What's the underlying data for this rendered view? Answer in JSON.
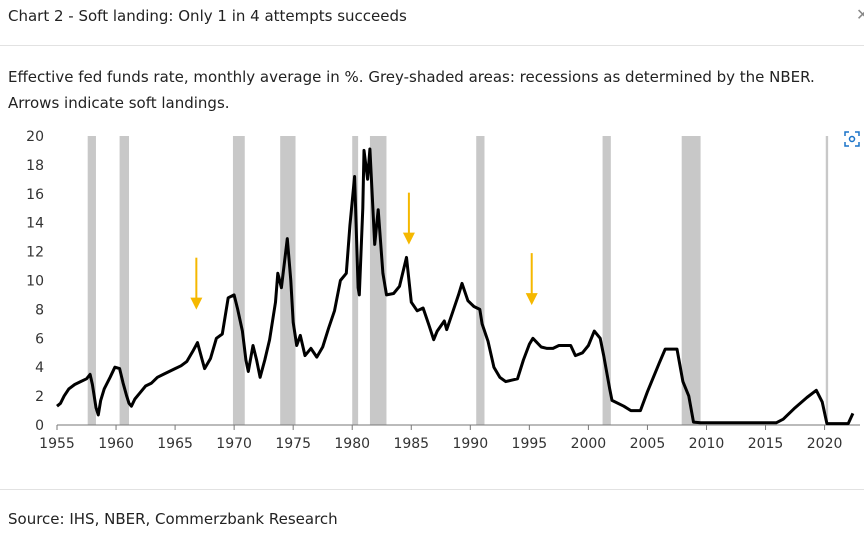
{
  "chart_data": {
    "type": "line",
    "title": "Chart 2 - Soft landing: Only 1 in 4 attempts succeeds",
    "subtitle": "Effective fed funds rate, monthly average in %. Grey-shaded areas: recessions as determined by the NBER. Arrows indicate soft landings.",
    "source": "Source: IHS, NBER, Commerzbank Research",
    "x": [
      1955.0,
      1955.3,
      1955.6,
      1956.0,
      1956.5,
      1957.0,
      1957.5,
      1957.8,
      1958.0,
      1958.3,
      1958.5,
      1958.7,
      1959.0,
      1959.5,
      1959.9,
      1960.3,
      1960.6,
      1960.9,
      1961.1,
      1961.3,
      1961.6,
      1962.0,
      1962.5,
      1963.0,
      1963.5,
      1964.0,
      1965.0,
      1965.5,
      1966.0,
      1966.5,
      1966.9,
      1967.3,
      1967.5,
      1968.0,
      1968.5,
      1969.0,
      1969.5,
      1970.0,
      1970.3,
      1970.7,
      1971.0,
      1971.2,
      1971.6,
      1971.9,
      1972.2,
      1972.6,
      1973.0,
      1973.5,
      1973.7,
      1974.0,
      1974.5,
      1974.8,
      1975.0,
      1975.3,
      1975.6,
      1976.0,
      1976.5,
      1977.0,
      1977.5,
      1978.0,
      1978.5,
      1979.0,
      1979.5,
      1979.8,
      1980.2,
      1980.5,
      1980.6,
      1980.9,
      1981.0,
      1981.3,
      1981.5,
      1981.9,
      1982.2,
      1982.6,
      1982.9,
      1983.5,
      1984.0,
      1984.6,
      1985.0,
      1985.5,
      1986.0,
      1986.5,
      1986.9,
      1987.2,
      1987.8,
      1988.0,
      1988.5,
      1989.0,
      1989.3,
      1989.8,
      1990.3,
      1990.8,
      1991.0,
      1991.5,
      1992.0,
      1992.5,
      1993.0,
      1993.5,
      1994.0,
      1994.5,
      1995.0,
      1995.3,
      1996.0,
      1996.5,
      1997.0,
      1997.5,
      1998.5,
      1998.9,
      1999.5,
      2000.0,
      2000.5,
      2001.0,
      2001.3,
      2001.8,
      2002.0,
      2003.0,
      2003.6,
      2004.4,
      2005.0,
      2006.0,
      2006.5,
      2007.5,
      2008.0,
      2008.5,
      2008.9,
      2009.5,
      2015.9,
      2016.5,
      2017.5,
      2018.5,
      2019.3,
      2019.8,
      2020.2,
      2022.0,
      2022.4
    ],
    "series": [
      {
        "color": "#000000",
        "values": [
          1.3,
          1.5,
          2.0,
          2.5,
          2.8,
          3.0,
          3.2,
          3.5,
          2.8,
          1.2,
          0.7,
          1.7,
          2.5,
          3.3,
          4.0,
          3.9,
          2.9,
          2.0,
          1.5,
          1.3,
          1.8,
          2.2,
          2.7,
          2.9,
          3.3,
          3.5,
          3.9,
          4.1,
          4.4,
          5.1,
          5.7,
          4.5,
          3.9,
          4.6,
          6.0,
          6.3,
          8.8,
          9.0,
          8.0,
          6.5,
          4.5,
          3.7,
          5.5,
          4.5,
          3.3,
          4.5,
          5.9,
          8.5,
          10.5,
          9.5,
          12.9,
          10.0,
          7.1,
          5.5,
          6.2,
          4.8,
          5.3,
          4.7,
          5.4,
          6.7,
          7.9,
          10.0,
          10.5,
          13.8,
          17.2,
          9.5,
          9.0,
          15.0,
          19.0,
          17.0,
          19.1,
          12.5,
          14.9,
          10.5,
          9.0,
          9.1,
          9.6,
          11.6,
          8.5,
          7.9,
          8.1,
          6.9,
          5.9,
          6.5,
          7.2,
          6.6,
          7.8,
          9.0,
          9.8,
          8.6,
          8.2,
          8.0,
          7.0,
          5.8,
          4.0,
          3.3,
          3.0,
          3.1,
          3.2,
          4.5,
          5.6,
          6.0,
          5.4,
          5.3,
          5.3,
          5.5,
          5.5,
          4.8,
          5.0,
          5.5,
          6.5,
          6.0,
          4.8,
          2.5,
          1.7,
          1.3,
          1.0,
          1.0,
          2.3,
          4.3,
          5.25,
          5.25,
          3.0,
          2.0,
          0.2,
          0.15,
          0.15,
          0.4,
          1.2,
          1.9,
          2.4,
          1.6,
          0.1,
          0.1,
          0.8
        ]
      }
    ],
    "recessions": [
      [
        1957.6,
        1958.3
      ],
      [
        1960.3,
        1961.1
      ],
      [
        1969.9,
        1970.9
      ],
      [
        1973.9,
        1975.2
      ],
      [
        1980.0,
        1980.5
      ],
      [
        1981.5,
        1982.9
      ],
      [
        1990.5,
        1991.2
      ],
      [
        2001.2,
        2001.9
      ],
      [
        2007.9,
        2009.5
      ],
      [
        2020.1,
        2020.3
      ]
    ],
    "recession_color": "#c8c8c8",
    "soft_landings": [
      1966.8,
      1984.8,
      1995.2
    ],
    "arrow_color": "#f5b800",
    "xlim": [
      1955,
      2023
    ],
    "ylim": [
      0,
      20
    ],
    "xticks": [
      1955,
      1960,
      1965,
      1970,
      1975,
      1980,
      1985,
      1990,
      1995,
      2000,
      2005,
      2010,
      2015,
      2020
    ],
    "yticks": [
      0,
      2,
      4,
      6,
      8,
      10,
      12,
      14,
      16,
      18,
      20
    ]
  }
}
